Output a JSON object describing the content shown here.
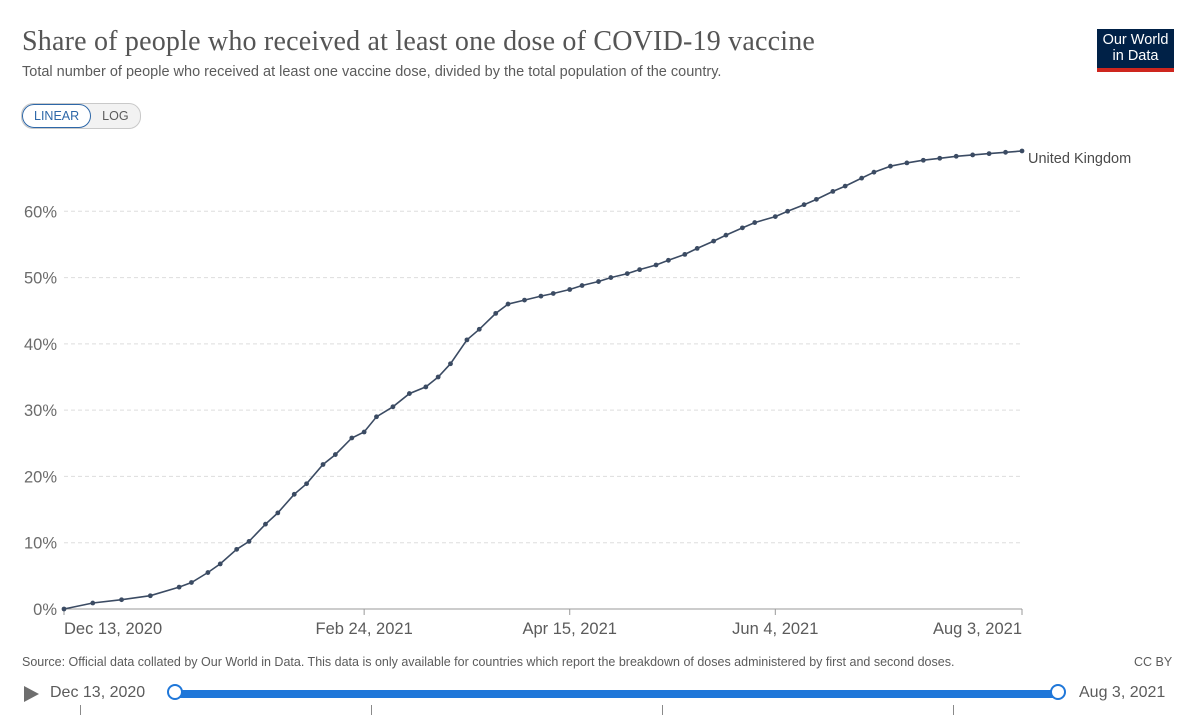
{
  "header": {
    "title": "Share of people who received at least one dose of COVID-19 vaccine",
    "subtitle": "Total number of people who received at least one vaccine dose, divided by the total population of the country."
  },
  "logo": {
    "line1": "Our World",
    "line2": "in Data"
  },
  "scale_toggle": {
    "linear_label": "LINEAR",
    "log_label": "LOG",
    "active": "linear"
  },
  "footer": {
    "source": "Source: Official data collated by Our World in Data. This data is only available for countries which report the breakdown of doses administered by first and second doses.",
    "license": "CC BY"
  },
  "timeline": {
    "start_label": "Dec 13, 2020",
    "end_label": "Aug 3, 2021"
  },
  "colors": {
    "series": "#3b4b63",
    "grid": "#dddddd",
    "accent": "#1f77d9",
    "logo_bg": "#002147",
    "logo_bar": "#ce261e"
  },
  "chart_data": {
    "type": "line",
    "title": "Share of people who received at least one dose of COVID-19 vaccine",
    "ylim": [
      0,
      70
    ],
    "yticks": [
      0,
      10,
      20,
      30,
      40,
      50,
      60
    ],
    "ytick_labels": [
      "0%",
      "10%",
      "20%",
      "30%",
      "40%",
      "50%",
      "60%"
    ],
    "xlim": [
      "2020-12-13",
      "2021-08-03"
    ],
    "xticks": [
      "2020-12-13",
      "2021-02-24",
      "2021-04-15",
      "2021-06-04",
      "2021-08-03"
    ],
    "xtick_labels": [
      "Dec 13, 2020",
      "Feb 24, 2021",
      "Apr 15, 2021",
      "Jun 4, 2021",
      "Aug 3, 2021"
    ],
    "grid": true,
    "series": [
      {
        "name": "United Kingdom",
        "x": [
          "2020-12-13",
          "2020-12-20",
          "2020-12-27",
          "2021-01-03",
          "2021-01-10",
          "2021-01-13",
          "2021-01-17",
          "2021-01-20",
          "2021-01-24",
          "2021-01-27",
          "2021-01-31",
          "2021-02-03",
          "2021-02-07",
          "2021-02-10",
          "2021-02-14",
          "2021-02-17",
          "2021-02-21",
          "2021-02-24",
          "2021-02-27",
          "2021-03-03",
          "2021-03-07",
          "2021-03-11",
          "2021-03-14",
          "2021-03-17",
          "2021-03-21",
          "2021-03-24",
          "2021-03-28",
          "2021-03-31",
          "2021-04-04",
          "2021-04-08",
          "2021-04-11",
          "2021-04-15",
          "2021-04-18",
          "2021-04-22",
          "2021-04-25",
          "2021-04-29",
          "2021-05-02",
          "2021-05-06",
          "2021-05-09",
          "2021-05-13",
          "2021-05-16",
          "2021-05-20",
          "2021-05-23",
          "2021-05-27",
          "2021-05-30",
          "2021-06-04",
          "2021-06-07",
          "2021-06-11",
          "2021-06-14",
          "2021-06-18",
          "2021-06-21",
          "2021-06-25",
          "2021-06-28",
          "2021-07-02",
          "2021-07-06",
          "2021-07-10",
          "2021-07-14",
          "2021-07-18",
          "2021-07-22",
          "2021-07-26",
          "2021-07-30",
          "2021-08-03"
        ],
        "y": [
          0.0,
          0.9,
          1.4,
          2.0,
          3.3,
          4.0,
          5.5,
          6.8,
          9.0,
          10.2,
          12.8,
          14.5,
          17.3,
          18.9,
          21.8,
          23.3,
          25.8,
          26.7,
          29.0,
          30.5,
          32.5,
          33.5,
          35.0,
          37.0,
          40.6,
          42.2,
          44.6,
          46.0,
          46.6,
          47.2,
          47.6,
          48.2,
          48.8,
          49.4,
          50.0,
          50.6,
          51.2,
          51.9,
          52.6,
          53.5,
          54.4,
          55.5,
          56.4,
          57.5,
          58.3,
          59.2,
          60.0,
          61.0,
          61.8,
          63.0,
          63.8,
          65.0,
          65.9,
          66.8,
          67.3,
          67.7,
          68.0,
          68.3,
          68.5,
          68.7,
          68.9,
          69.1
        ]
      }
    ]
  }
}
